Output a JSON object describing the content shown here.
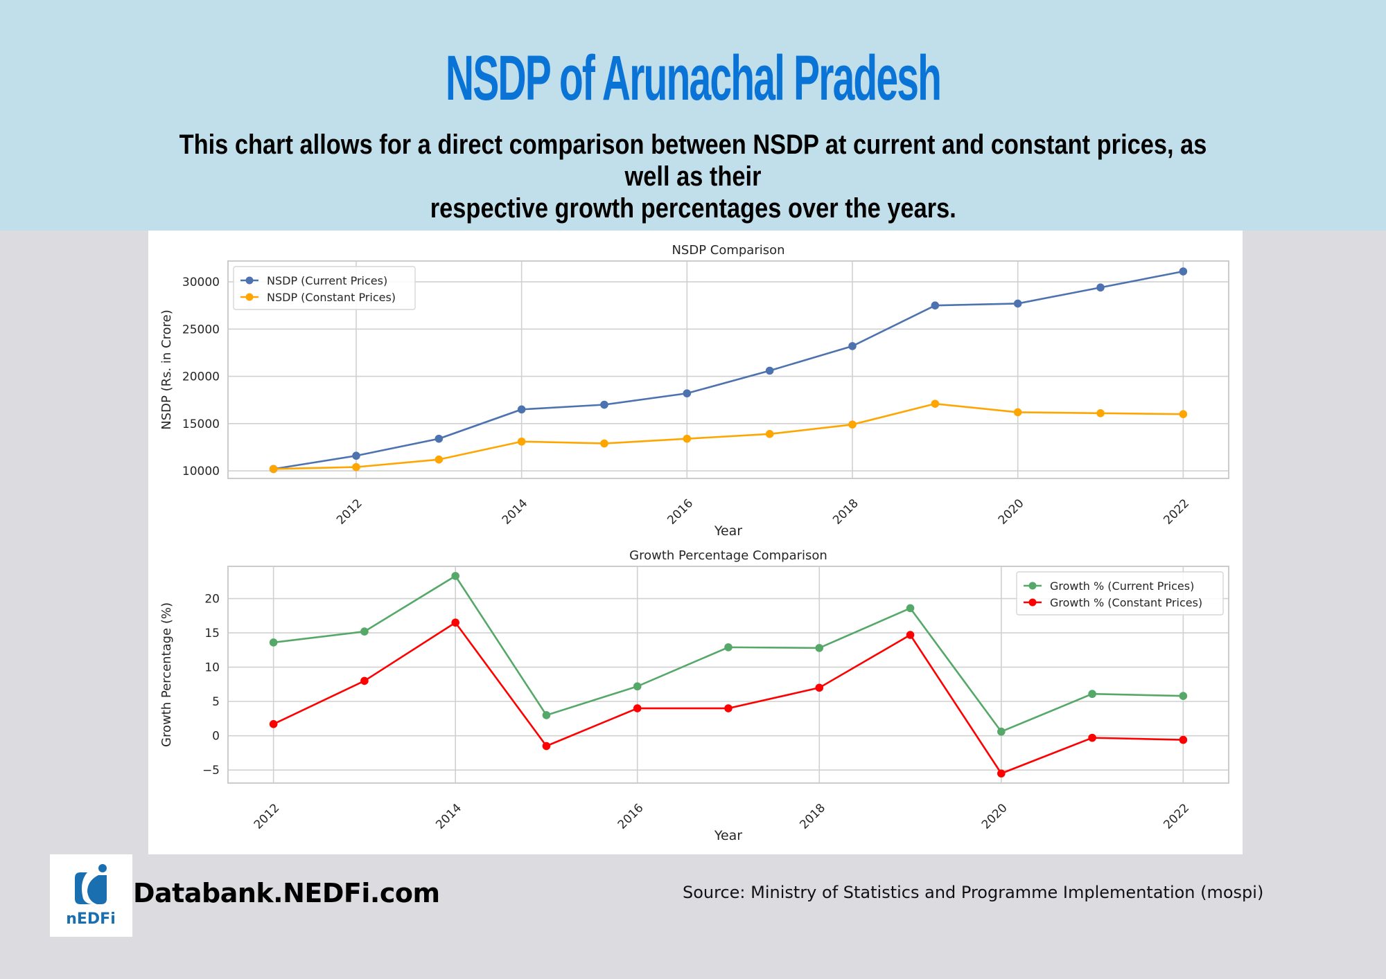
{
  "header": {
    "title": "NSDP of Arunachal Pradesh",
    "subtitle_line1": "This chart allows for a direct comparison between NSDP at current and constant prices, as well as their",
    "subtitle_line2": "respective growth percentages over the years."
  },
  "footer": {
    "site": "Databank.NEDFi.com",
    "logo_text": "nEDFi",
    "source": "Source:  Ministry of Statistics and Programme Implementation (mospi)"
  },
  "colors": {
    "header_bg": "#c1dfea",
    "title": "#0a73d6",
    "current": "#4c72b0",
    "constant": "#ffa500",
    "growth_current": "#55a868",
    "growth_constant": "#ff0000",
    "logo": "#1a6fb0"
  },
  "chart_data": [
    {
      "type": "line",
      "title": "NSDP Comparison",
      "xlabel": "Year",
      "ylabel": "NSDP (Rs. in Crore)",
      "x": [
        2011,
        2012,
        2013,
        2014,
        2015,
        2016,
        2017,
        2018,
        2019,
        2020,
        2021,
        2022
      ],
      "xlim": [
        2010.45,
        2022.55
      ],
      "ylim": [
        9200,
        32200
      ],
      "xticks": [
        2012,
        2014,
        2016,
        2018,
        2020,
        2022
      ],
      "yticks": [
        10000,
        15000,
        20000,
        25000,
        30000
      ],
      "grid": true,
      "legend_position": "top-left",
      "series": [
        {
          "name": "NSDP (Current Prices)",
          "color": "#4c72b0",
          "values": [
            10200,
            11600,
            13400,
            16500,
            17000,
            18200,
            20600,
            23200,
            27500,
            27700,
            29400,
            31100
          ]
        },
        {
          "name": "NSDP (Constant Prices)",
          "color": "#ffa500",
          "values": [
            10200,
            10400,
            11200,
            13100,
            12900,
            13400,
            13900,
            14900,
            17100,
            16200,
            16100,
            16000
          ]
        }
      ]
    },
    {
      "type": "line",
      "title": "Growth Percentage Comparison",
      "xlabel": "Year",
      "ylabel": "Growth Percentage (%)",
      "x": [
        2012,
        2013,
        2014,
        2015,
        2016,
        2017,
        2018,
        2019,
        2020,
        2021,
        2022
      ],
      "xlim": [
        2011.5,
        2022.5
      ],
      "ylim": [
        -6.9,
        24.7
      ],
      "xticks": [
        2012,
        2014,
        2016,
        2018,
        2020,
        2022
      ],
      "yticks": [
        -5,
        0,
        5,
        10,
        15,
        20
      ],
      "grid": true,
      "legend_position": "top-right",
      "series": [
        {
          "name": "Growth % (Current Prices)",
          "color": "#55a868",
          "values": [
            13.6,
            15.2,
            23.3,
            3.0,
            7.2,
            12.9,
            12.8,
            18.6,
            0.6,
            6.1,
            5.8
          ]
        },
        {
          "name": "Growth % (Constant Prices)",
          "color": "#ff0000",
          "values": [
            1.7,
            8.0,
            16.5,
            -1.5,
            4.0,
            4.0,
            7.0,
            14.7,
            -5.5,
            -0.3,
            -0.6
          ]
        }
      ]
    }
  ]
}
